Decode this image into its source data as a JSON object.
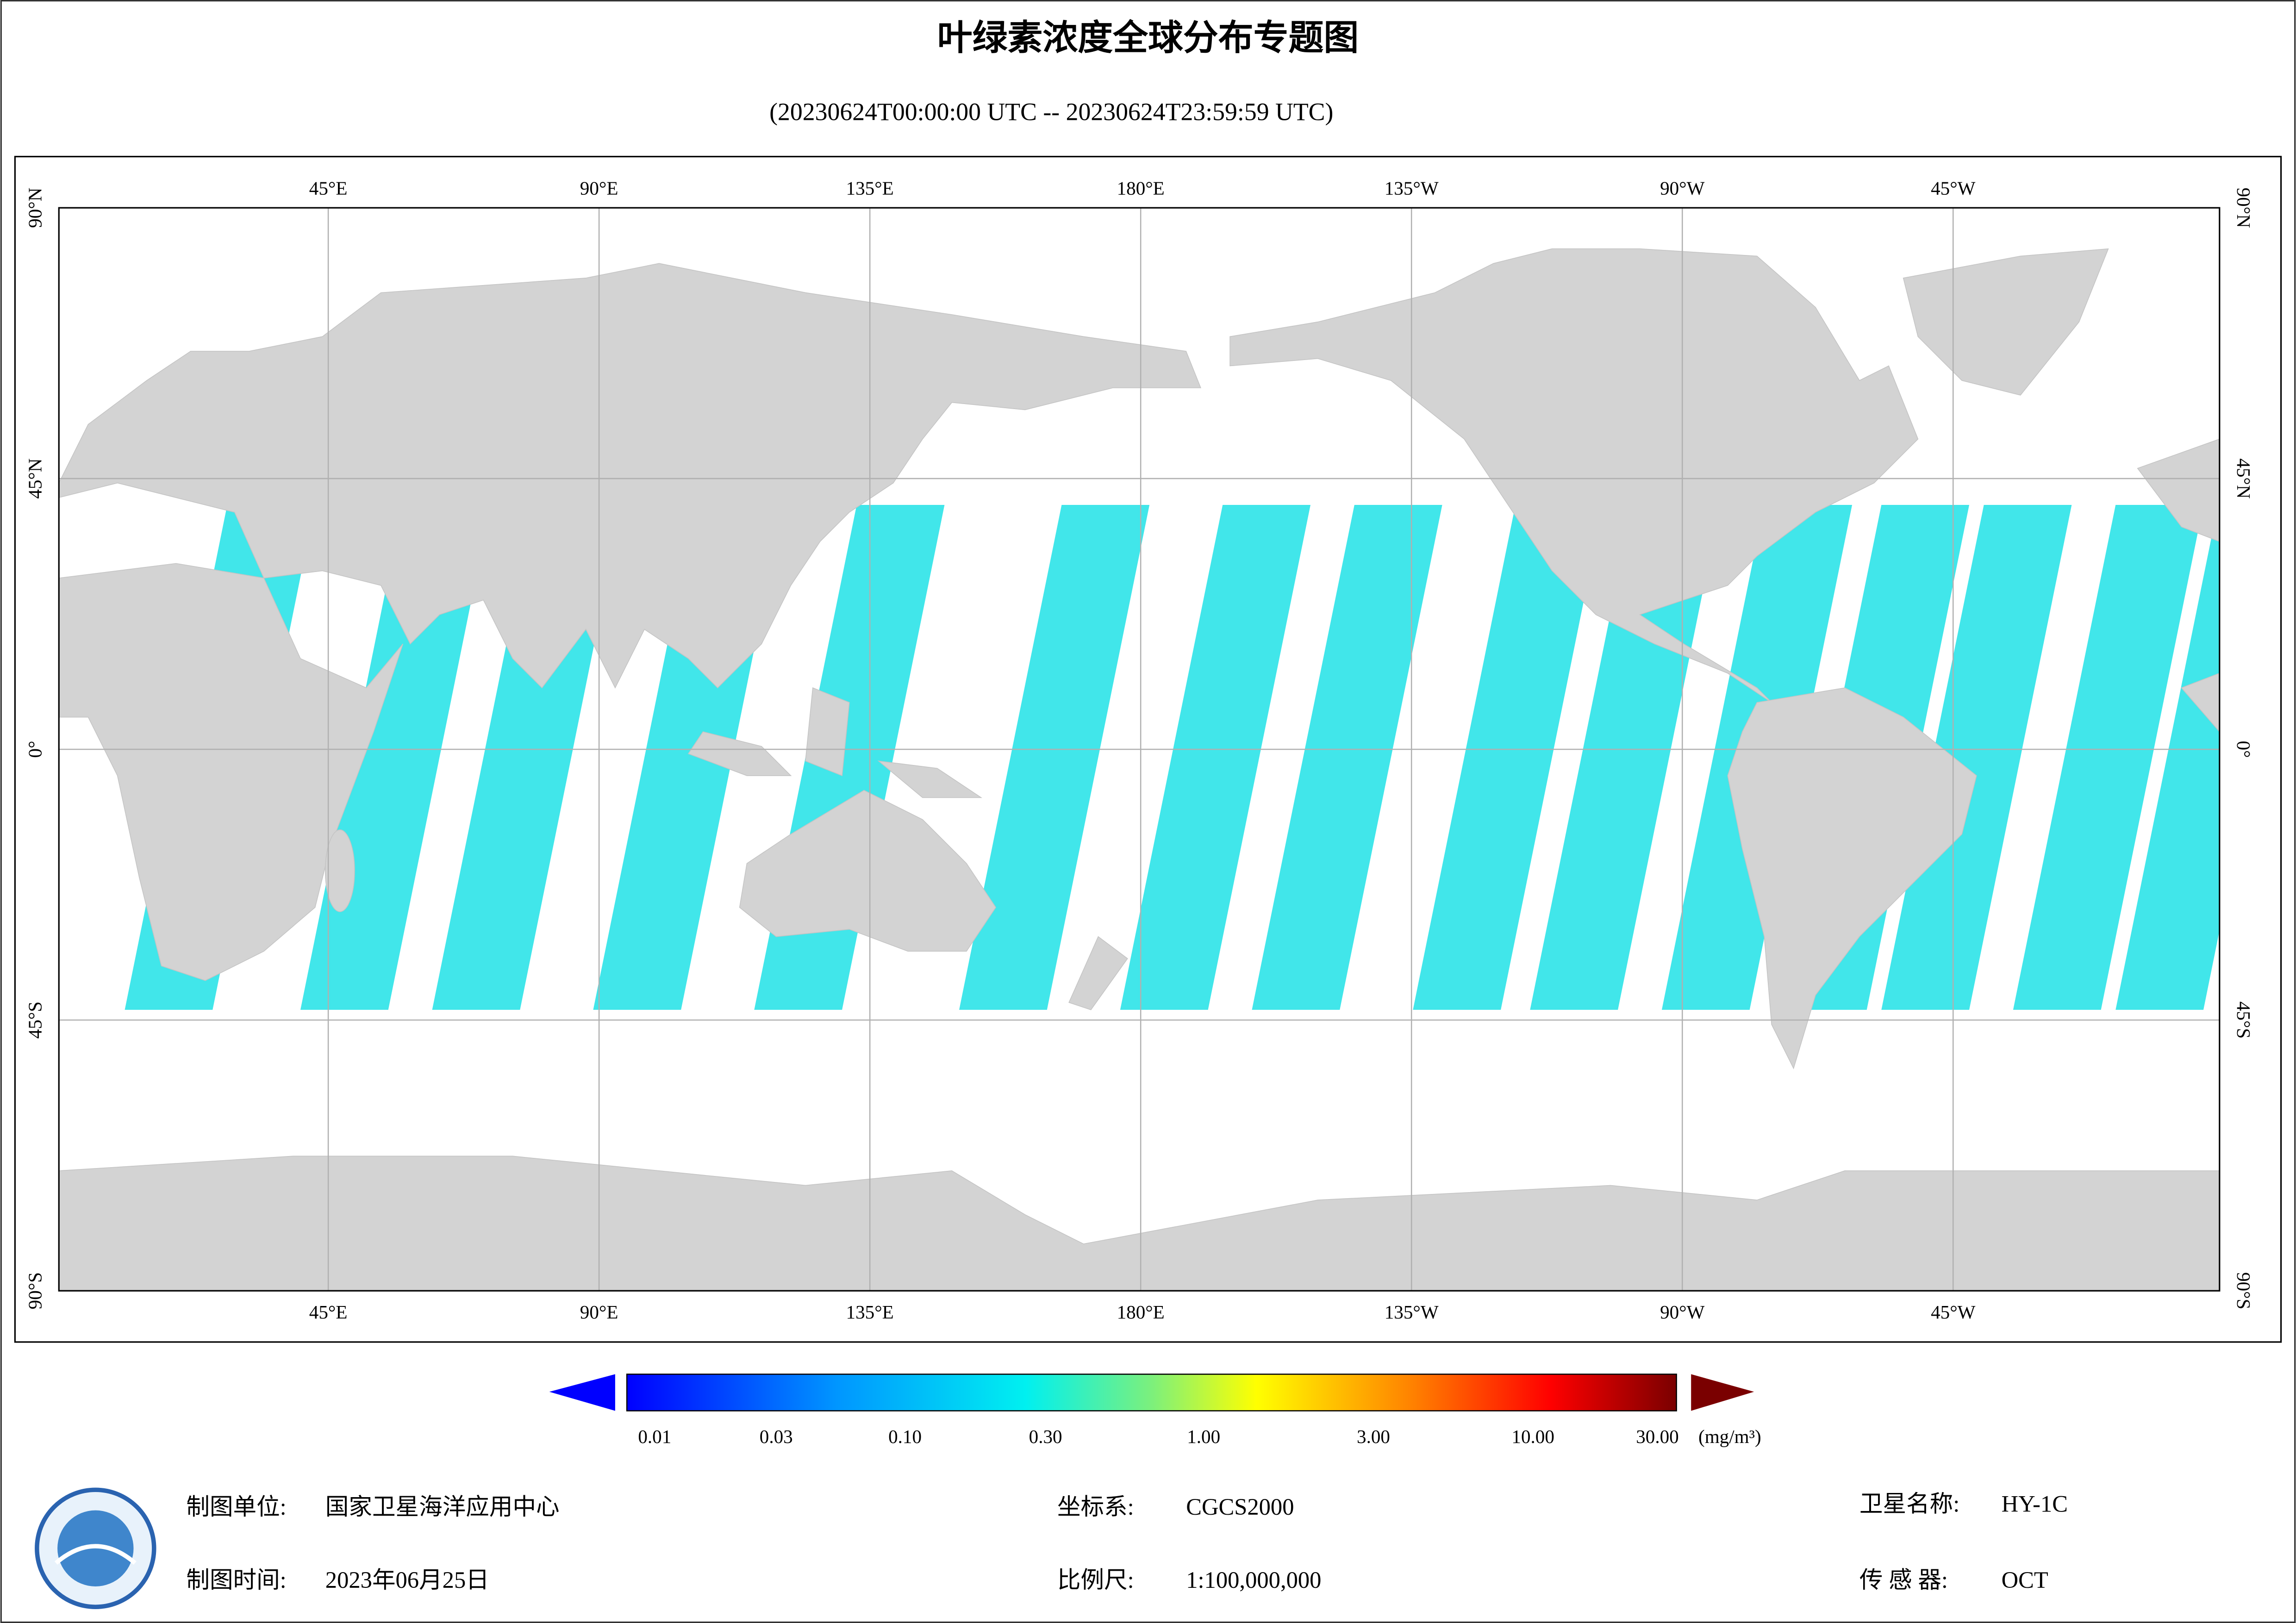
{
  "title": "叶绿素浓度全球分布专题图",
  "subtitle": "(20230624T00:00:00 UTC -- 20230624T23:59:59 UTC)",
  "map": {
    "lon_labels": [
      "45°E",
      "90°E",
      "135°E",
      "180°E",
      "135°W",
      "90°W",
      "45°W"
    ],
    "lat_labels": [
      "90°N",
      "45°N",
      "0°",
      "45°S",
      "90°S"
    ]
  },
  "colorbar": {
    "labels": [
      "0.01",
      "0.03",
      "0.10",
      "0.30",
      "1.00",
      "3.00",
      "10.00",
      "30.00"
    ],
    "unit": "(mg/m³)"
  },
  "footer": {
    "unit_label": "制图单位:",
    "unit_value": "国家卫星海洋应用中心",
    "time_label": "制图时间:",
    "time_value": "2023年06月25日",
    "crs_label": "坐标系:",
    "crs_value": "CGCS2000",
    "scale_label": "比例尺:",
    "scale_value": "1:100,000,000",
    "sat_label": "卫星名称:",
    "sat_value": "HY-1C",
    "sensor_label": "传 感 器:",
    "sensor_value": "OCT"
  }
}
